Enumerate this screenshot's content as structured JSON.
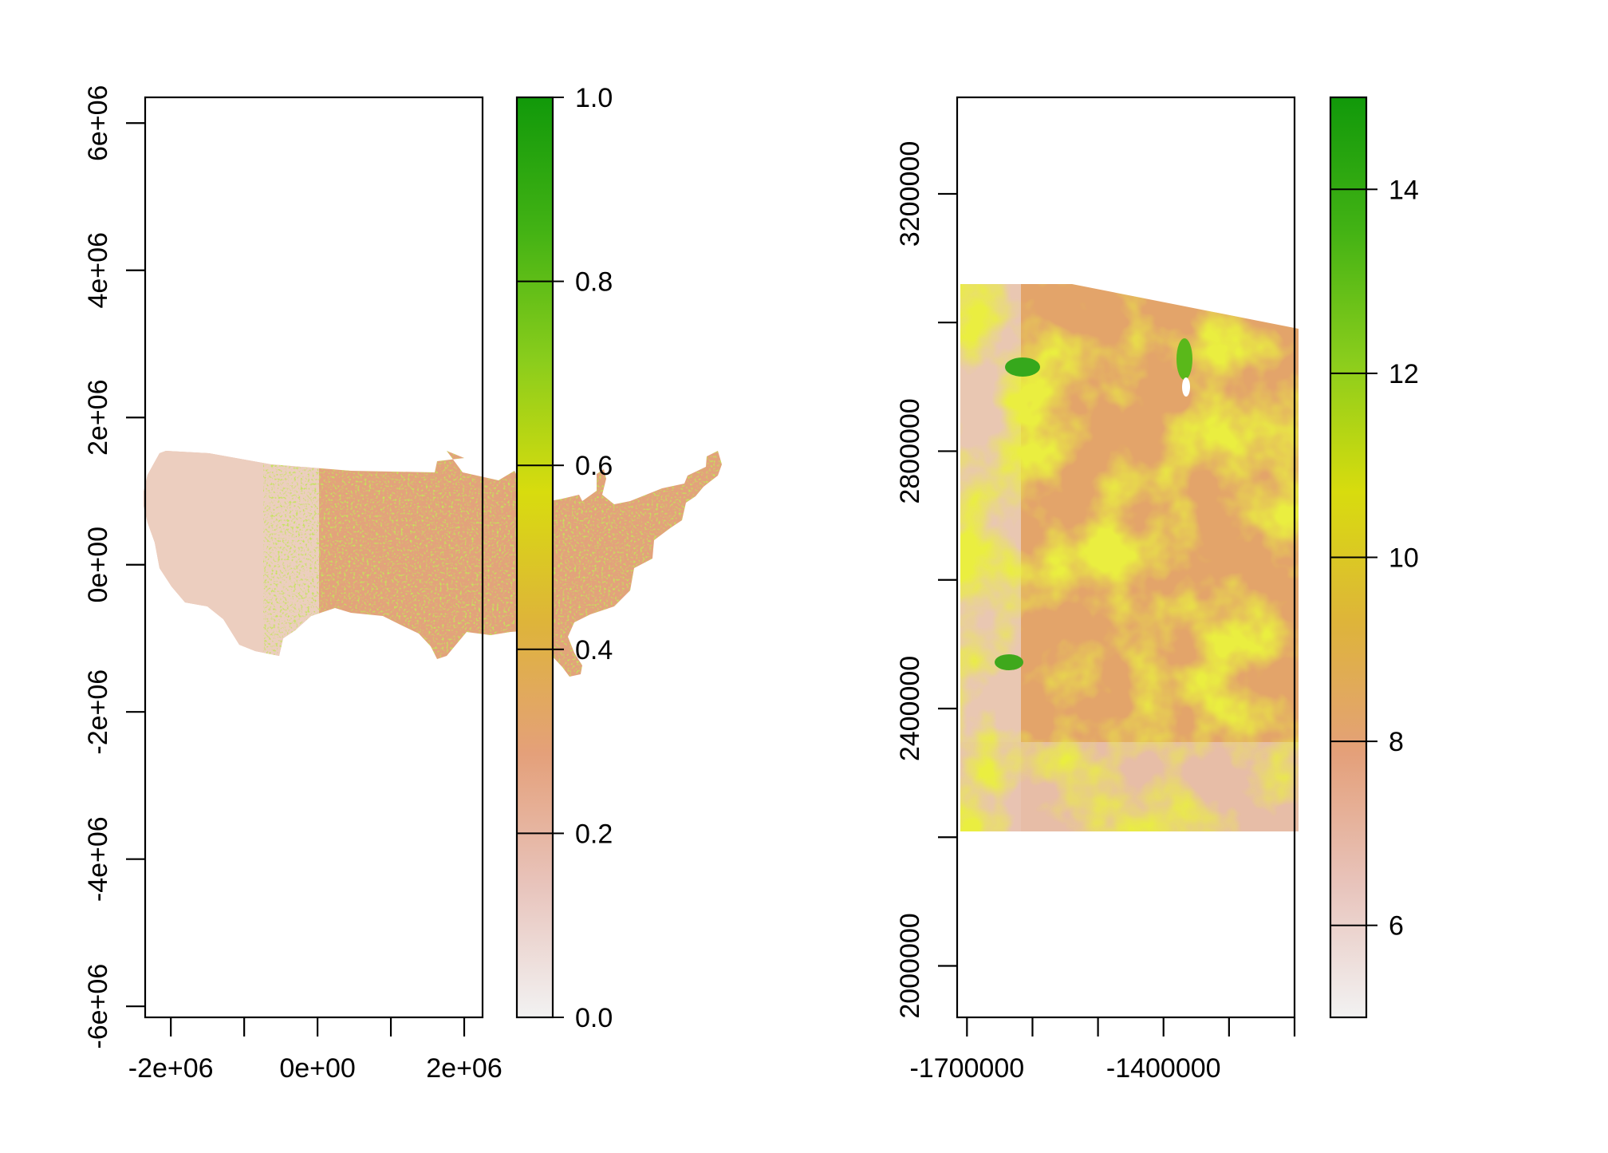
{
  "chart_data": [
    {
      "type": "heatmap",
      "title": "",
      "xlabel": "",
      "ylabel": "",
      "xlim": [
        -2350000,
        2250000
      ],
      "ylim": [
        -6150000,
        6350000
      ],
      "x_ticks": [
        -2000000,
        -1000000,
        0,
        1000000,
        2000000
      ],
      "x_tick_labels": [
        "-2e+06",
        "",
        "0e+00",
        "",
        "2e+06"
      ],
      "y_ticks": [
        -6000000,
        -4000000,
        -2000000,
        0,
        2000000,
        4000000,
        6000000
      ],
      "y_tick_labels": [
        "-6e+06",
        "-4e+06",
        "-2e+06",
        "0e+00",
        "2e+06",
        "4e+06",
        "6e+06"
      ],
      "colorbar": {
        "min": 0,
        "max": 1,
        "ticks": [
          0.0,
          0.2,
          0.4,
          0.6,
          0.8,
          1.0
        ],
        "tick_labels": [
          "0.0",
          "0.2",
          "0.4",
          "0.6",
          "0.8",
          "1.0"
        ],
        "colors": [
          "#f2f2f2",
          "#e8c4bc",
          "#e4a07a",
          "#deb43a",
          "#d8dc0e",
          "#8acd1c",
          "#42b214",
          "#11990a"
        ]
      },
      "raster_extent": {
        "x": [
          -2350000,
          2250000
        ],
        "y": [
          -1300000,
          1550000
        ]
      },
      "description": "contiguous United States"
    },
    {
      "type": "heatmap",
      "title": "",
      "xlabel": "",
      "ylabel": "",
      "xlim": [
        -1715000,
        -1200000
      ],
      "ylim": [
        1920000,
        3350000
      ],
      "x_ticks": [
        -1700000,
        -1600000,
        -1500000,
        -1400000,
        -1300000,
        -1200000
      ],
      "x_tick_labels": [
        "-1700000",
        "",
        "",
        "-1400000",
        "",
        ""
      ],
      "y_ticks": [
        2000000,
        2200000,
        2400000,
        2600000,
        2800000,
        3000000,
        3200000
      ],
      "y_tick_labels": [
        "2000000",
        "",
        "2400000",
        "",
        "2800000",
        "",
        "3200000"
      ],
      "colorbar": {
        "min": 5,
        "max": 15,
        "ticks": [
          6,
          8,
          10,
          12,
          14
        ],
        "tick_labels": [
          "6",
          "8",
          "10",
          "12",
          "14"
        ],
        "colors": [
          "#f2f2f2",
          "#e8c4bc",
          "#e4a07a",
          "#deb43a",
          "#d8dc0e",
          "#8acd1c",
          "#42b214",
          "#11990a"
        ]
      },
      "raster_extent": {
        "x": [
          -1715000,
          -1200000
        ],
        "y": [
          2210000,
          3060000
        ]
      }
    }
  ]
}
